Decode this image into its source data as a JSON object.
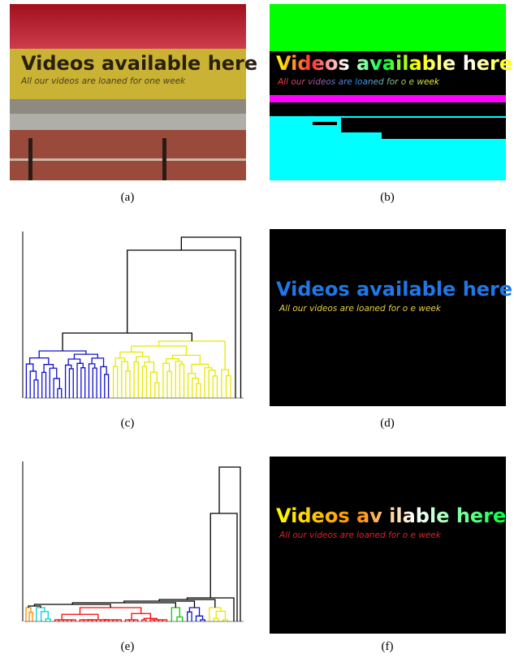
{
  "panels": [
    {
      "caption": "(a)",
      "sign_title": "Videos available here",
      "sign_subtitle": "All our videos are loaned for one week"
    },
    {
      "caption": "(b)",
      "sign_title": "Videos available here",
      "sign_subtitle": "All our videos are loaned for o e week"
    },
    {
      "caption": "(c)"
    },
    {
      "caption": "(d)",
      "sign_title": "Videos available here",
      "sign_subtitle": "All our videos are loaned for o e week"
    },
    {
      "caption": "(e)"
    },
    {
      "caption": "(f)",
      "sign_title": "Videos av ilable here",
      "sign_subtitle": "All our videos are loaned for o e week"
    }
  ]
}
